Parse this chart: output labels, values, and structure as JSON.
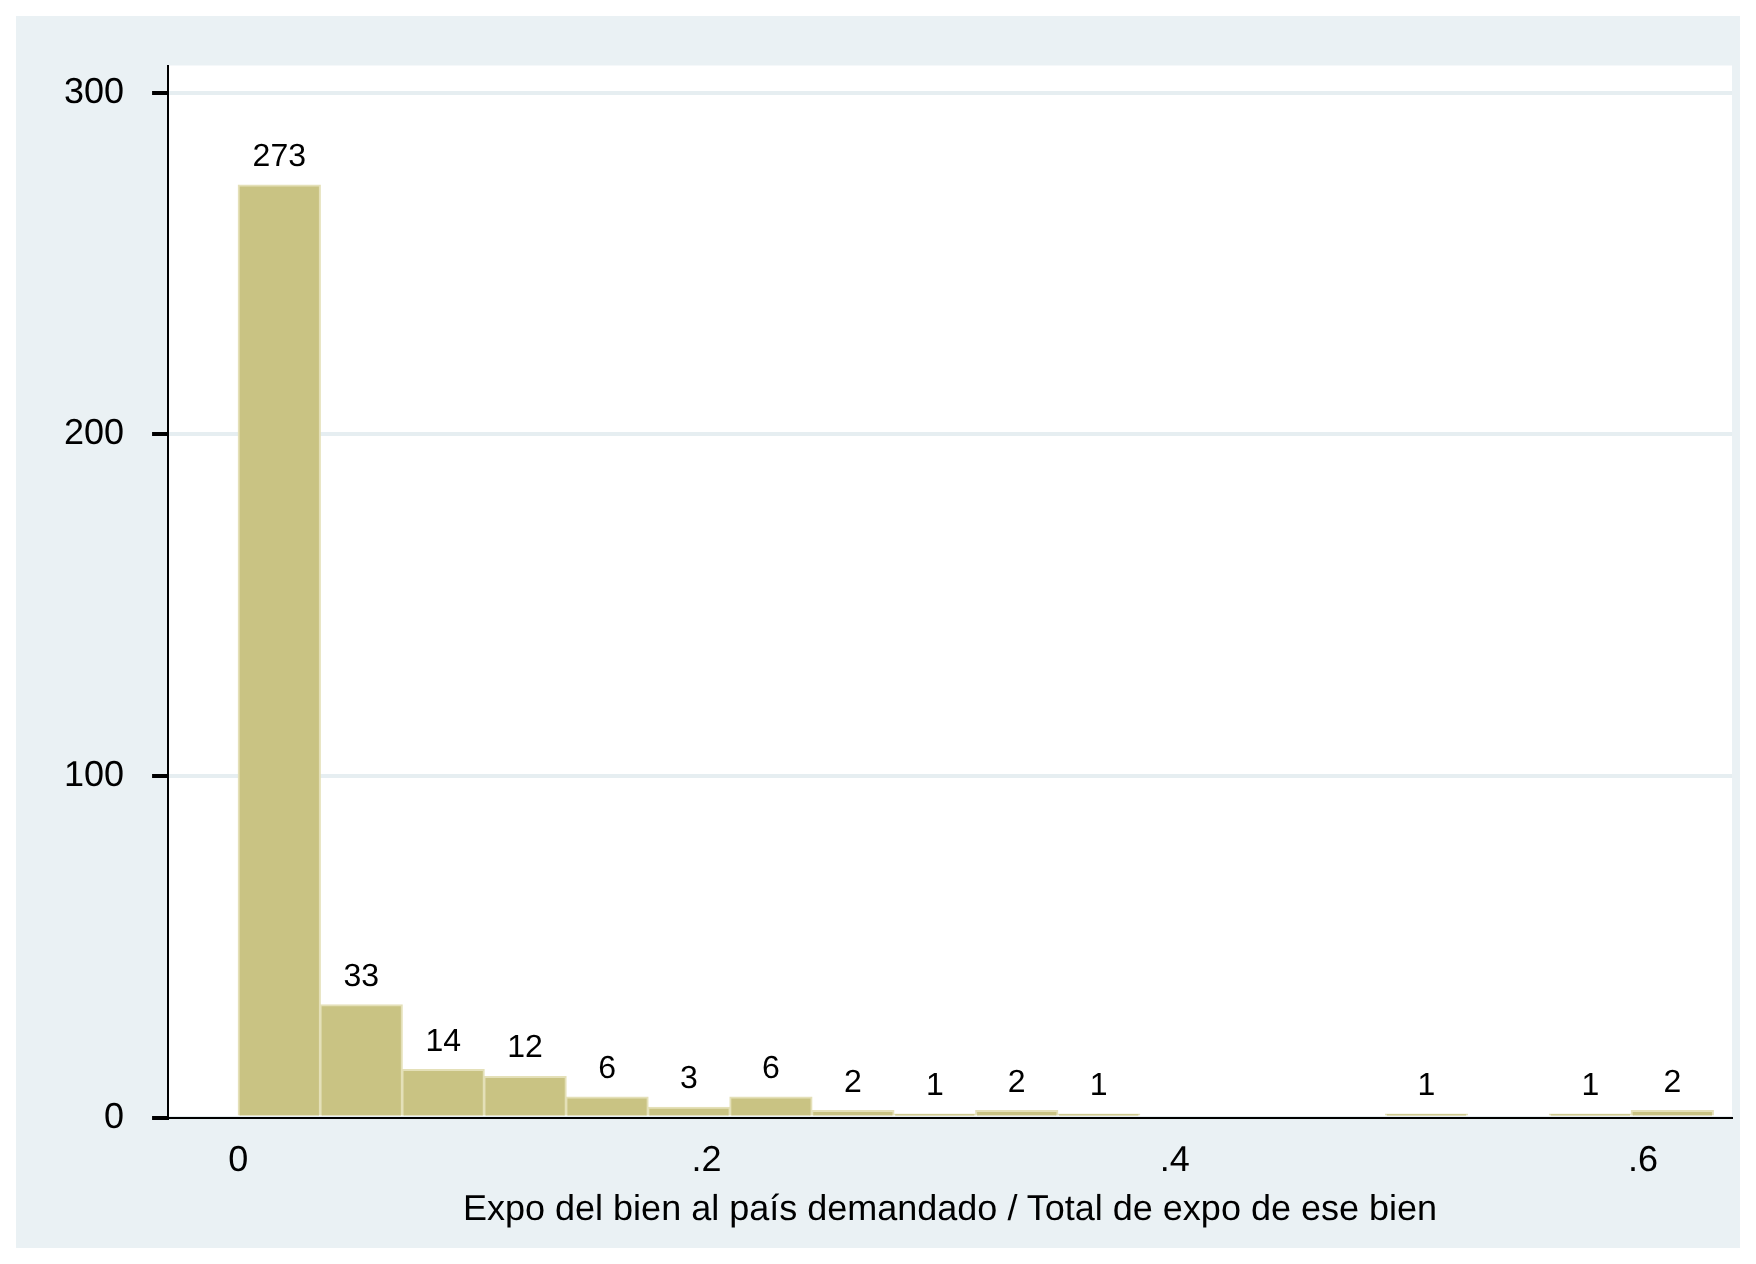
{
  "chart_data": {
    "type": "histogram",
    "xlabel": "Expo del bien al país demandado / Total de expo de ese bien",
    "bins": [
      0,
      0.035,
      0.07,
      0.105,
      0.14,
      0.175,
      0.21,
      0.245,
      0.28,
      0.315,
      0.35,
      0.385,
      0.42,
      0.455,
      0.49,
      0.525,
      0.56,
      0.595,
      0.63
    ],
    "values": [
      273,
      33,
      14,
      12,
      6,
      3,
      6,
      2,
      1,
      2,
      1,
      0,
      0,
      0,
      1,
      0,
      1,
      2
    ],
    "value_labels": [
      "273",
      "33",
      "14",
      "12",
      "6",
      "3",
      "6",
      "2",
      "1",
      "2",
      "1",
      null,
      null,
      null,
      "1",
      null,
      "1",
      "2"
    ],
    "color": "#c9c383",
    "xlim": [
      -0.03,
      0.638
    ],
    "xticks": [
      {
        "value": 0,
        "label": "0"
      },
      {
        "value": 0.2,
        "label": ".2"
      },
      {
        "value": 0.4,
        "label": ".4"
      },
      {
        "value": 0.6,
        "label": ".6"
      }
    ],
    "ylim": [
      0,
      308
    ],
    "yticks": [
      0,
      100,
      200,
      300
    ],
    "grid": "y"
  }
}
